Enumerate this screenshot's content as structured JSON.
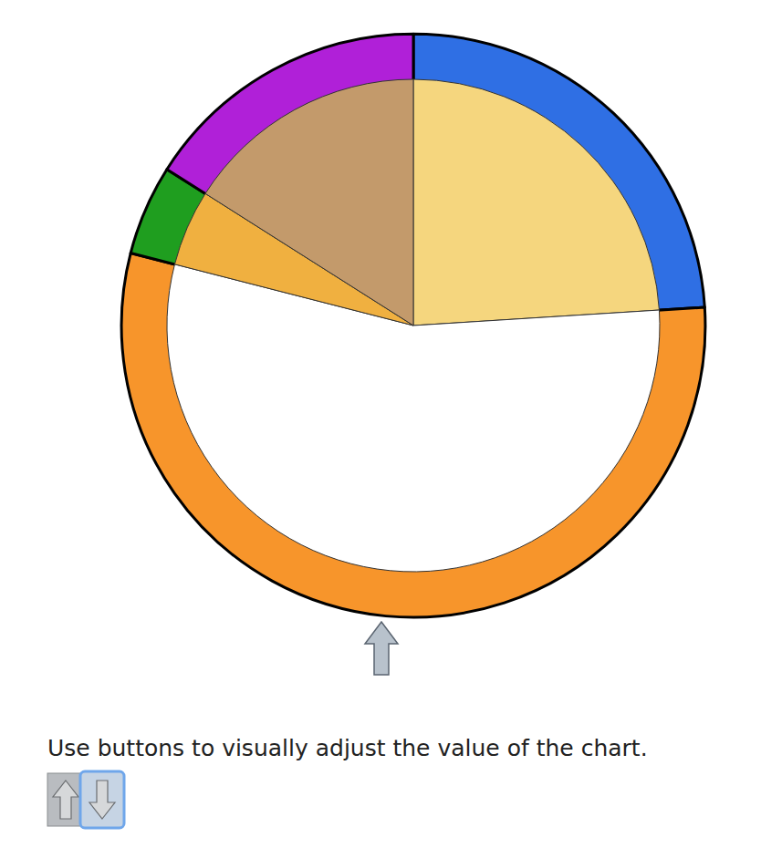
{
  "chart_data": {
    "type": "pie",
    "values": [
      24,
      55,
      5,
      16
    ],
    "colors": [
      "#2f6fe4",
      "#f7952b",
      "#1f9e1f",
      "#b020d8"
    ]
  },
  "instructions": {
    "text": "Use buttons to visually adjust the value of the chart."
  }
}
